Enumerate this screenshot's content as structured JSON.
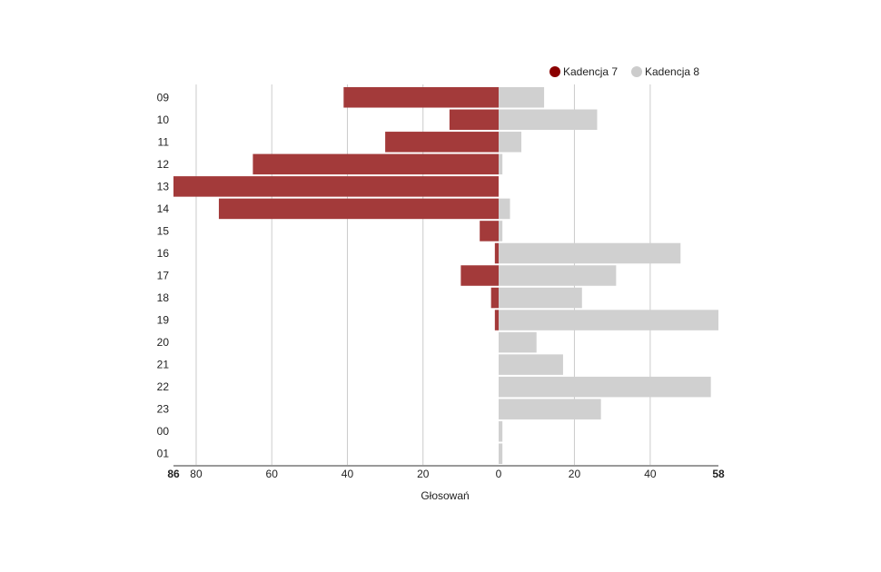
{
  "chart_data": {
    "type": "bar",
    "orientation": "horizontal-diverging",
    "categories": [
      "09",
      "10",
      "11",
      "12",
      "13",
      "14",
      "15",
      "16",
      "17",
      "18",
      "19",
      "20",
      "21",
      "22",
      "23",
      "00",
      "01"
    ],
    "series": [
      {
        "name": "Kadencja 7",
        "color": "#a33a3a",
        "legend_color": "#8b0000",
        "values": [
          41,
          13,
          30,
          65,
          86,
          74,
          5,
          1,
          10,
          2,
          1,
          0,
          0,
          0,
          0,
          0,
          0
        ]
      },
      {
        "name": "Kadencja 8",
        "color": "#d0d0d0",
        "legend_color": "#cccccc",
        "values": [
          12,
          26,
          6,
          1,
          0,
          3,
          1,
          48,
          31,
          22,
          58,
          10,
          17,
          56,
          27,
          1,
          1
        ]
      }
    ],
    "xlabel": "Głosowań",
    "ylabel": "",
    "left_max": 86,
    "right_max": 58,
    "ticks_left": [
      80,
      60,
      40,
      20
    ],
    "ticks_right": [
      20,
      40
    ],
    "legend_position": "top-right",
    "grid": true
  }
}
